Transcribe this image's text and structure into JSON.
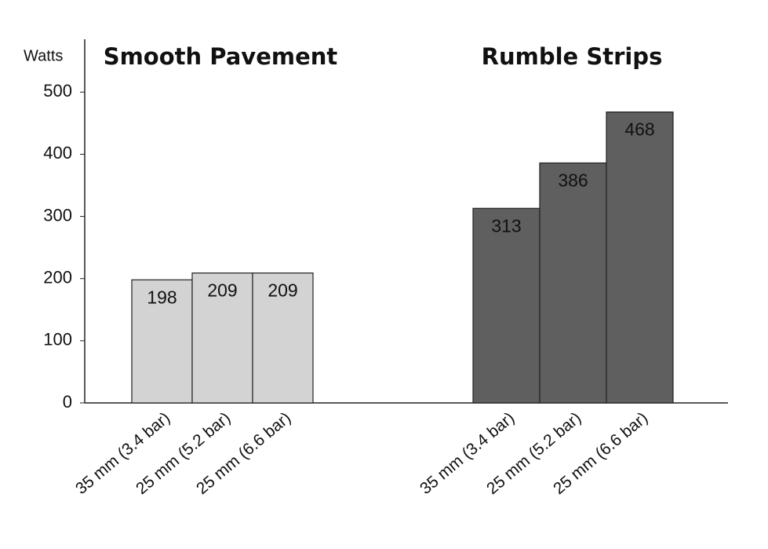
{
  "chart_data": {
    "type": "bar",
    "y_label": "Watts",
    "ylim": [
      0,
      585
    ],
    "yticks": [
      0,
      100,
      200,
      300,
      400,
      500
    ],
    "groups": [
      {
        "title": "Smooth Pavement",
        "color": "#d3d3d3",
        "categories": [
          "35 mm (3.4 bar)",
          "25 mm (5.2 bar)",
          "25 mm (6.6 bar)"
        ],
        "values": [
          198,
          209,
          209
        ]
      },
      {
        "title": "Rumble Strips",
        "color": "#5f5f5f",
        "categories": [
          "35 mm (3.4 bar)",
          "25 mm (5.2 bar)",
          "25 mm (6.6 bar)"
        ],
        "values": [
          313,
          386,
          468
        ]
      }
    ]
  }
}
